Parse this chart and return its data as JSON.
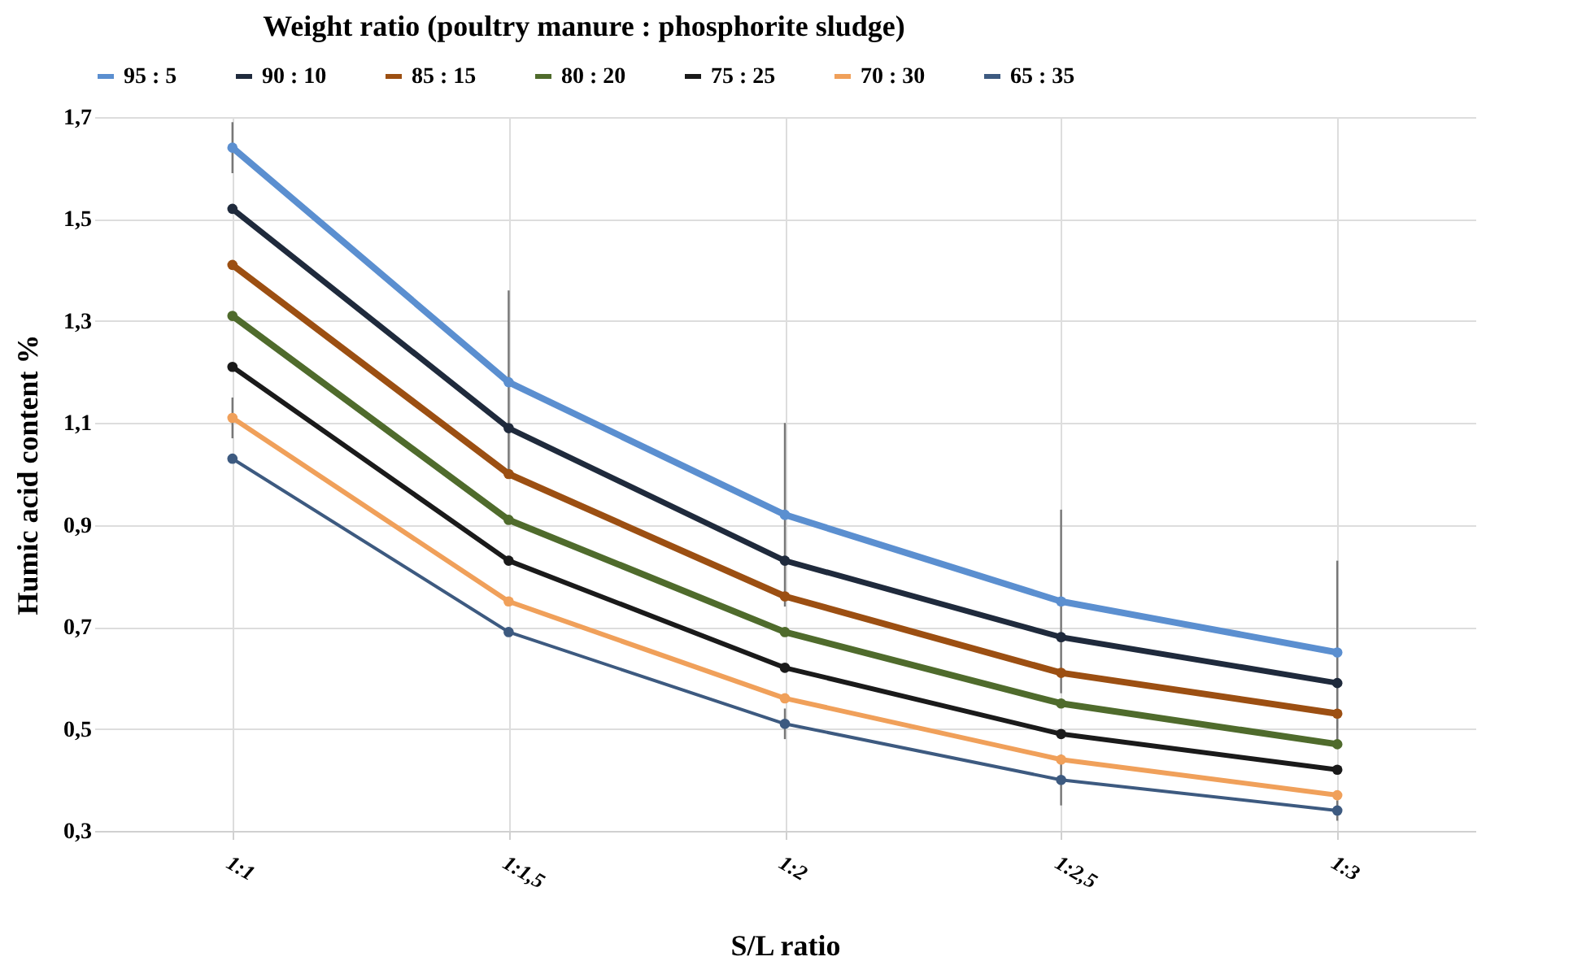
{
  "chart_data": {
    "type": "line",
    "legend_title": "Weight ratio (poultry manure : phosphorite sludge)",
    "xlabel": "S/L ratio",
    "ylabel": "Humic acid content %",
    "categories": [
      "1:1",
      "1:1,5",
      "1:2",
      "1:2,5",
      "1:3"
    ],
    "series": [
      {
        "name": "95 : 5",
        "color": "#5b8fd0",
        "values": [
          1.64,
          1.18,
          0.92,
          0.75,
          0.65
        ],
        "errors": [
          0.05,
          0.18,
          0.18,
          0.18,
          0.18
        ]
      },
      {
        "name": "90 : 10",
        "color": "#1f2a3c",
        "values": [
          1.52,
          1.09,
          0.83,
          0.68,
          0.59
        ]
      },
      {
        "name": "85 : 15",
        "color": "#9c4f12",
        "values": [
          1.41,
          1.0,
          0.76,
          0.61,
          0.53
        ]
      },
      {
        "name": "80 : 20",
        "color": "#4f6b2c",
        "values": [
          1.31,
          0.91,
          0.69,
          0.55,
          0.47
        ]
      },
      {
        "name": "75 : 25",
        "color": "#1a1a1a",
        "values": [
          1.21,
          0.83,
          0.62,
          0.49,
          0.42
        ]
      },
      {
        "name": "70 : 30",
        "color": "#f0a05a",
        "values": [
          1.11,
          0.75,
          0.56,
          0.44,
          0.37
        ],
        "errors": [
          0.04,
          null,
          null,
          null,
          null
        ]
      },
      {
        "name": "65 : 35",
        "color": "#3d5a80",
        "values": [
          1.03,
          0.69,
          0.51,
          0.4,
          0.34
        ],
        "errors": [
          null,
          null,
          0.03,
          0.05,
          0.02
        ]
      }
    ],
    "ylim": [
      0.3,
      1.7
    ],
    "yticks": [
      {
        "value": 0.3,
        "label": "0,3"
      },
      {
        "value": 0.5,
        "label": "0,5"
      },
      {
        "value": 0.7,
        "label": "0,7"
      },
      {
        "value": 0.9,
        "label": "0,9"
      },
      {
        "value": 1.1,
        "label": "1,1"
      },
      {
        "value": 1.3,
        "label": "1,3"
      },
      {
        "value": 1.5,
        "label": "1,5"
      },
      {
        "value": 1.7,
        "label": "1,7"
      }
    ],
    "grid": true,
    "legend": "top",
    "marker": "circle",
    "line_style": "solid"
  }
}
